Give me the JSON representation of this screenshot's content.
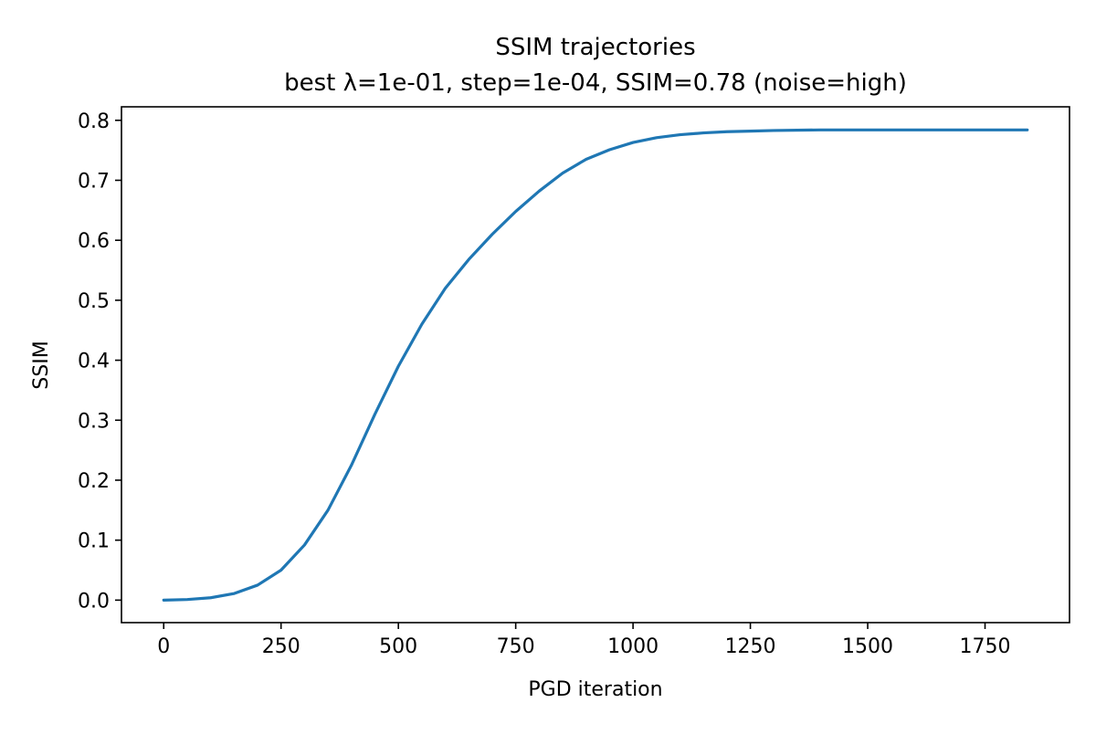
{
  "chart_data": {
    "type": "line",
    "title": "SSIM trajectories",
    "subtitle": "best λ=1e-01, step=1e-04, SSIM=0.78 (noise=high)",
    "xlabel": "PGD iteration",
    "ylabel": "SSIM",
    "xlim": [
      -90,
      1930
    ],
    "ylim": [
      -0.0375,
      0.8225
    ],
    "xticks": [
      0,
      250,
      500,
      750,
      1000,
      1250,
      1500,
      1750
    ],
    "yticks": [
      0.0,
      0.1,
      0.2,
      0.3,
      0.4,
      0.5,
      0.6,
      0.7,
      0.8
    ],
    "xtick_labels": [
      "0",
      "250",
      "500",
      "750",
      "1000",
      "1250",
      "1500",
      "1750"
    ],
    "ytick_labels": [
      "0.0",
      "0.1",
      "0.2",
      "0.3",
      "0.4",
      "0.5",
      "0.6",
      "0.7",
      "0.8"
    ],
    "grid": false,
    "legend": "none",
    "series": [
      {
        "color": "#1f77b4",
        "x": [
          0,
          50,
          100,
          150,
          200,
          250,
          300,
          350,
          400,
          450,
          500,
          550,
          600,
          650,
          700,
          750,
          800,
          850,
          900,
          950,
          1000,
          1050,
          1100,
          1150,
          1200,
          1250,
          1300,
          1400,
          1500,
          1600,
          1700,
          1840
        ],
        "y": [
          0.0,
          0.001,
          0.004,
          0.011,
          0.025,
          0.05,
          0.092,
          0.15,
          0.225,
          0.31,
          0.39,
          0.46,
          0.52,
          0.568,
          0.61,
          0.648,
          0.682,
          0.712,
          0.735,
          0.751,
          0.763,
          0.771,
          0.776,
          0.779,
          0.781,
          0.782,
          0.783,
          0.784,
          0.784,
          0.784,
          0.784,
          0.784
        ]
      }
    ]
  }
}
